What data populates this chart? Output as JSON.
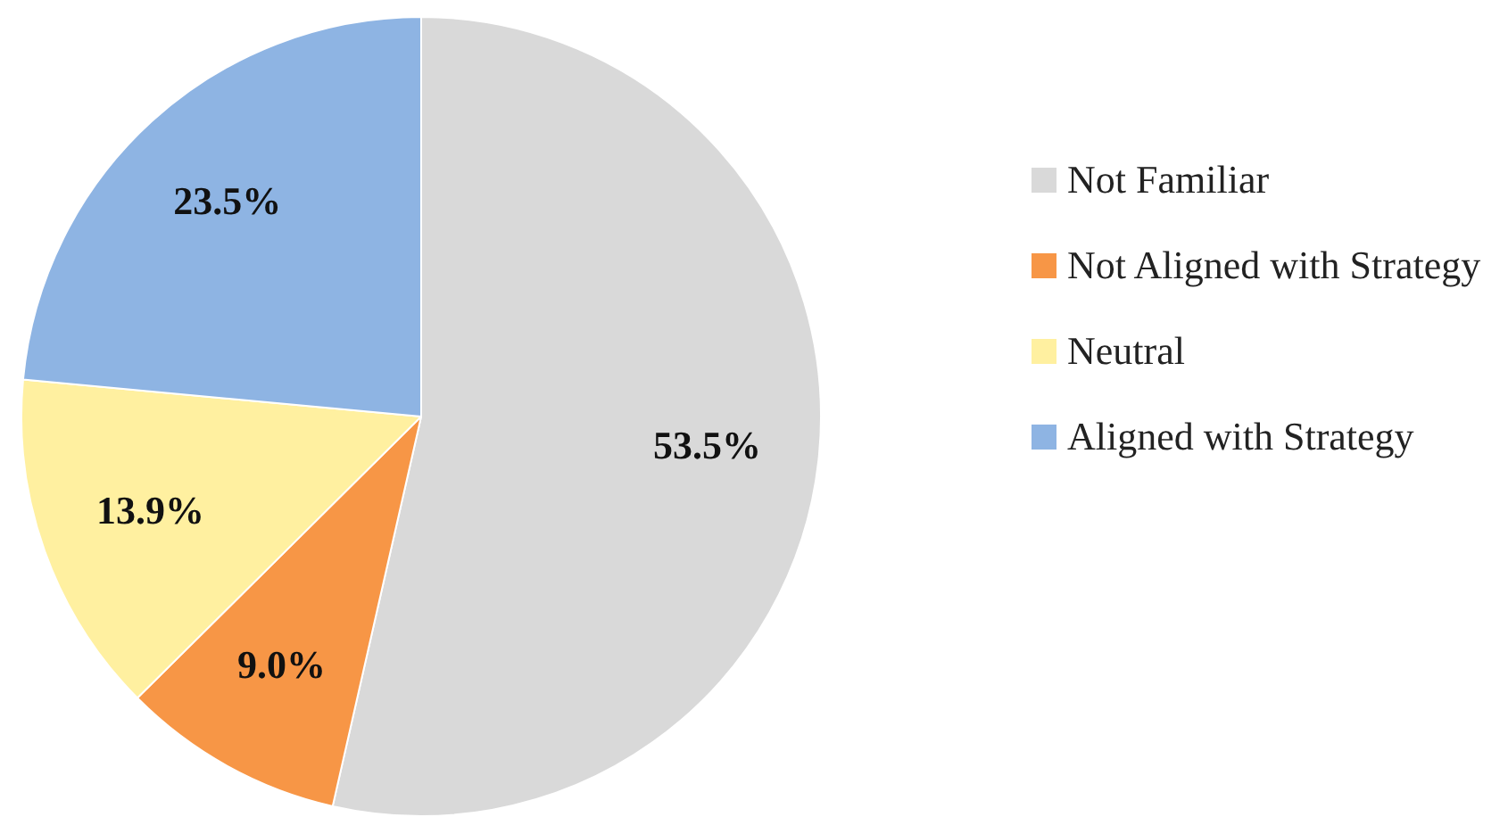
{
  "chart_data": {
    "type": "pie",
    "categories": [
      "Not Familiar",
      "Not Aligned with Strategy",
      "Neutral",
      "Aligned with Strategy"
    ],
    "values": [
      53.5,
      9.0,
      13.9,
      23.5
    ],
    "colors": [
      "#d9d9d9",
      "#f79646",
      "#fff0a0",
      "#8eb4e3"
    ],
    "value_labels": [
      "53.5%",
      "9.0%",
      "13.9%",
      "23.5%"
    ],
    "legend": "right"
  }
}
